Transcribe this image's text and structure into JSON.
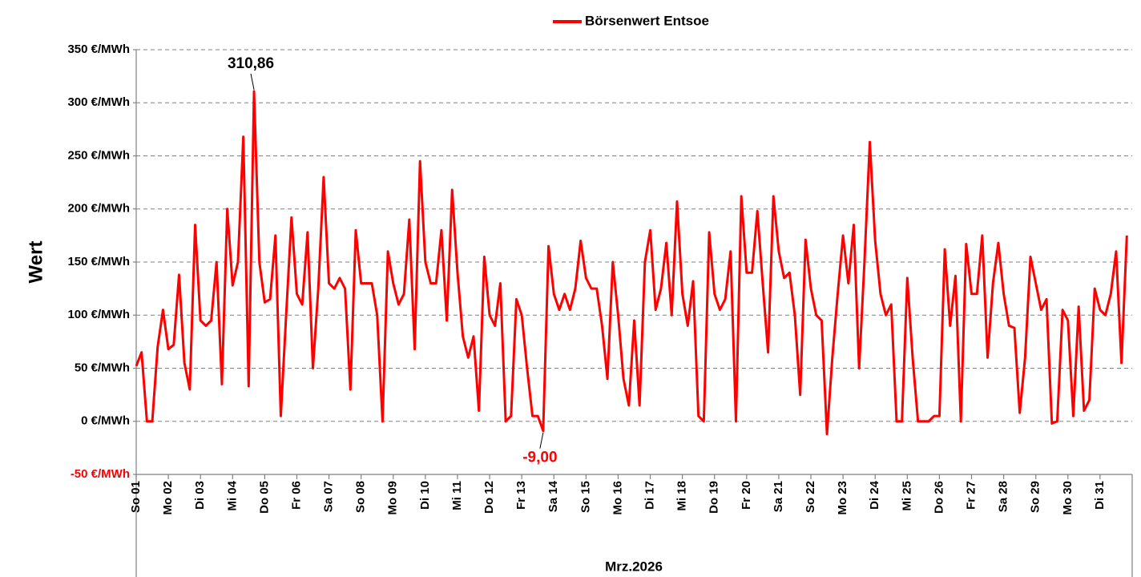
{
  "chart_data": {
    "type": "line",
    "legend": "top",
    "grid": true,
    "ylabel": "Wert",
    "xlabel": "Mrz.2026",
    "ylim": [
      -50,
      350
    ],
    "yticks": [
      {
        "value": -50,
        "label": "-50 €/MWh",
        "color": "#ff0000"
      },
      {
        "value": 0,
        "label": "0 €/MWh"
      },
      {
        "value": 50,
        "label": "50 €/MWh"
      },
      {
        "value": 100,
        "label": "100 €/MWh"
      },
      {
        "value": 150,
        "label": "150 €/MWh"
      },
      {
        "value": 200,
        "label": "200 €/MWh"
      },
      {
        "value": 250,
        "label": "250 €/MWh"
      },
      {
        "value": 300,
        "label": "300 €/MWh"
      },
      {
        "value": 350,
        "label": "350 €/MWh"
      }
    ],
    "categories": [
      "So 01",
      null,
      null,
      null,
      null,
      null,
      "Mo 02",
      null,
      null,
      null,
      null,
      null,
      "Di 03",
      null,
      null,
      null,
      null,
      null,
      "Mi 04",
      null,
      null,
      null,
      null,
      null,
      "Do 05",
      null,
      null,
      null,
      null,
      null,
      "Fr 06",
      null,
      null,
      null,
      null,
      null,
      "Sa 07",
      null,
      null,
      null,
      null,
      null,
      "So 08",
      null,
      null,
      null,
      null,
      null,
      "Mo 09",
      null,
      null,
      null,
      null,
      null,
      "Di 10",
      null,
      null,
      null,
      null,
      null,
      "Mi 11",
      null,
      null,
      null,
      null,
      null,
      "Do 12",
      null,
      null,
      null,
      null,
      null,
      "Fr 13",
      null,
      null,
      null,
      null,
      null,
      "Sa 14",
      null,
      null,
      null,
      null,
      null,
      "So 15",
      null,
      null,
      null,
      null,
      null,
      "Mo 16",
      null,
      null,
      null,
      null,
      null,
      "Di 17",
      null,
      null,
      null,
      null,
      null,
      "Mi 18",
      null,
      null,
      null,
      null,
      null,
      "Do 19",
      null,
      null,
      null,
      null,
      null,
      "Fr 20",
      null,
      null,
      null,
      null,
      null,
      "Sa 21",
      null,
      null,
      null,
      null,
      null,
      "So 22",
      null,
      null,
      null,
      null,
      null,
      "Mo 23",
      null,
      null,
      null,
      null,
      null,
      "Di 24",
      null,
      null,
      null,
      null,
      null,
      "Mi 25",
      null,
      null,
      null,
      null,
      null,
      "Do 26",
      null,
      null,
      null,
      null,
      null,
      "Fr 27",
      null,
      null,
      null,
      null,
      null,
      "Sa 28",
      null,
      null,
      null,
      null,
      null,
      "So 29",
      null,
      null,
      null,
      null,
      null,
      "Mo 30",
      null,
      null,
      null,
      null,
      null,
      "Di 31",
      null,
      null,
      null,
      null,
      null
    ],
    "series": [
      {
        "name": "Börsenwert Entsoe",
        "color": "#ff0000",
        "values": [
          52,
          65,
          0,
          0,
          70,
          105,
          68,
          72,
          138,
          55,
          30,
          185,
          95,
          90,
          95,
          150,
          35,
          200,
          128,
          150,
          268,
          33,
          310.86,
          150,
          112,
          115,
          175,
          5,
          100,
          192,
          120,
          110,
          178,
          50,
          125,
          230,
          130,
          125,
          135,
          125,
          30,
          180,
          130,
          130,
          130,
          100,
          0,
          160,
          130,
          110,
          120,
          190,
          68,
          245,
          150,
          130,
          130,
          180,
          95,
          218,
          140,
          80,
          60,
          80,
          10,
          155,
          100,
          90,
          130,
          0,
          5,
          115,
          100,
          50,
          5,
          5,
          -9,
          165,
          120,
          105,
          120,
          105,
          125,
          170,
          135,
          125,
          125,
          90,
          40,
          150,
          100,
          40,
          15,
          95,
          15,
          150,
          180,
          105,
          125,
          168,
          100,
          207,
          120,
          90,
          132,
          5,
          0,
          178,
          120,
          105,
          115,
          160,
          0,
          212,
          140,
          140,
          198,
          130,
          65,
          212,
          160,
          135,
          140,
          100,
          25,
          171,
          125,
          100,
          95,
          -12,
          60,
          120,
          175,
          130,
          185,
          50,
          150,
          263,
          170,
          120,
          100,
          110,
          0,
          0,
          135,
          60,
          0,
          0,
          0,
          5,
          5,
          162,
          90,
          137,
          0,
          167,
          120,
          120,
          175,
          60,
          130,
          168,
          120,
          90,
          88,
          8,
          60,
          155,
          130,
          105,
          115,
          -2,
          0,
          105,
          95,
          5,
          108,
          10,
          20,
          125,
          105,
          100,
          120,
          160,
          55,
          175
        ]
      }
    ],
    "annotations": [
      {
        "text": "310,86",
        "value": 310.86,
        "color": "#000000"
      },
      {
        "text": "-9,00",
        "value": -9,
        "color": "#ff0000"
      }
    ]
  }
}
